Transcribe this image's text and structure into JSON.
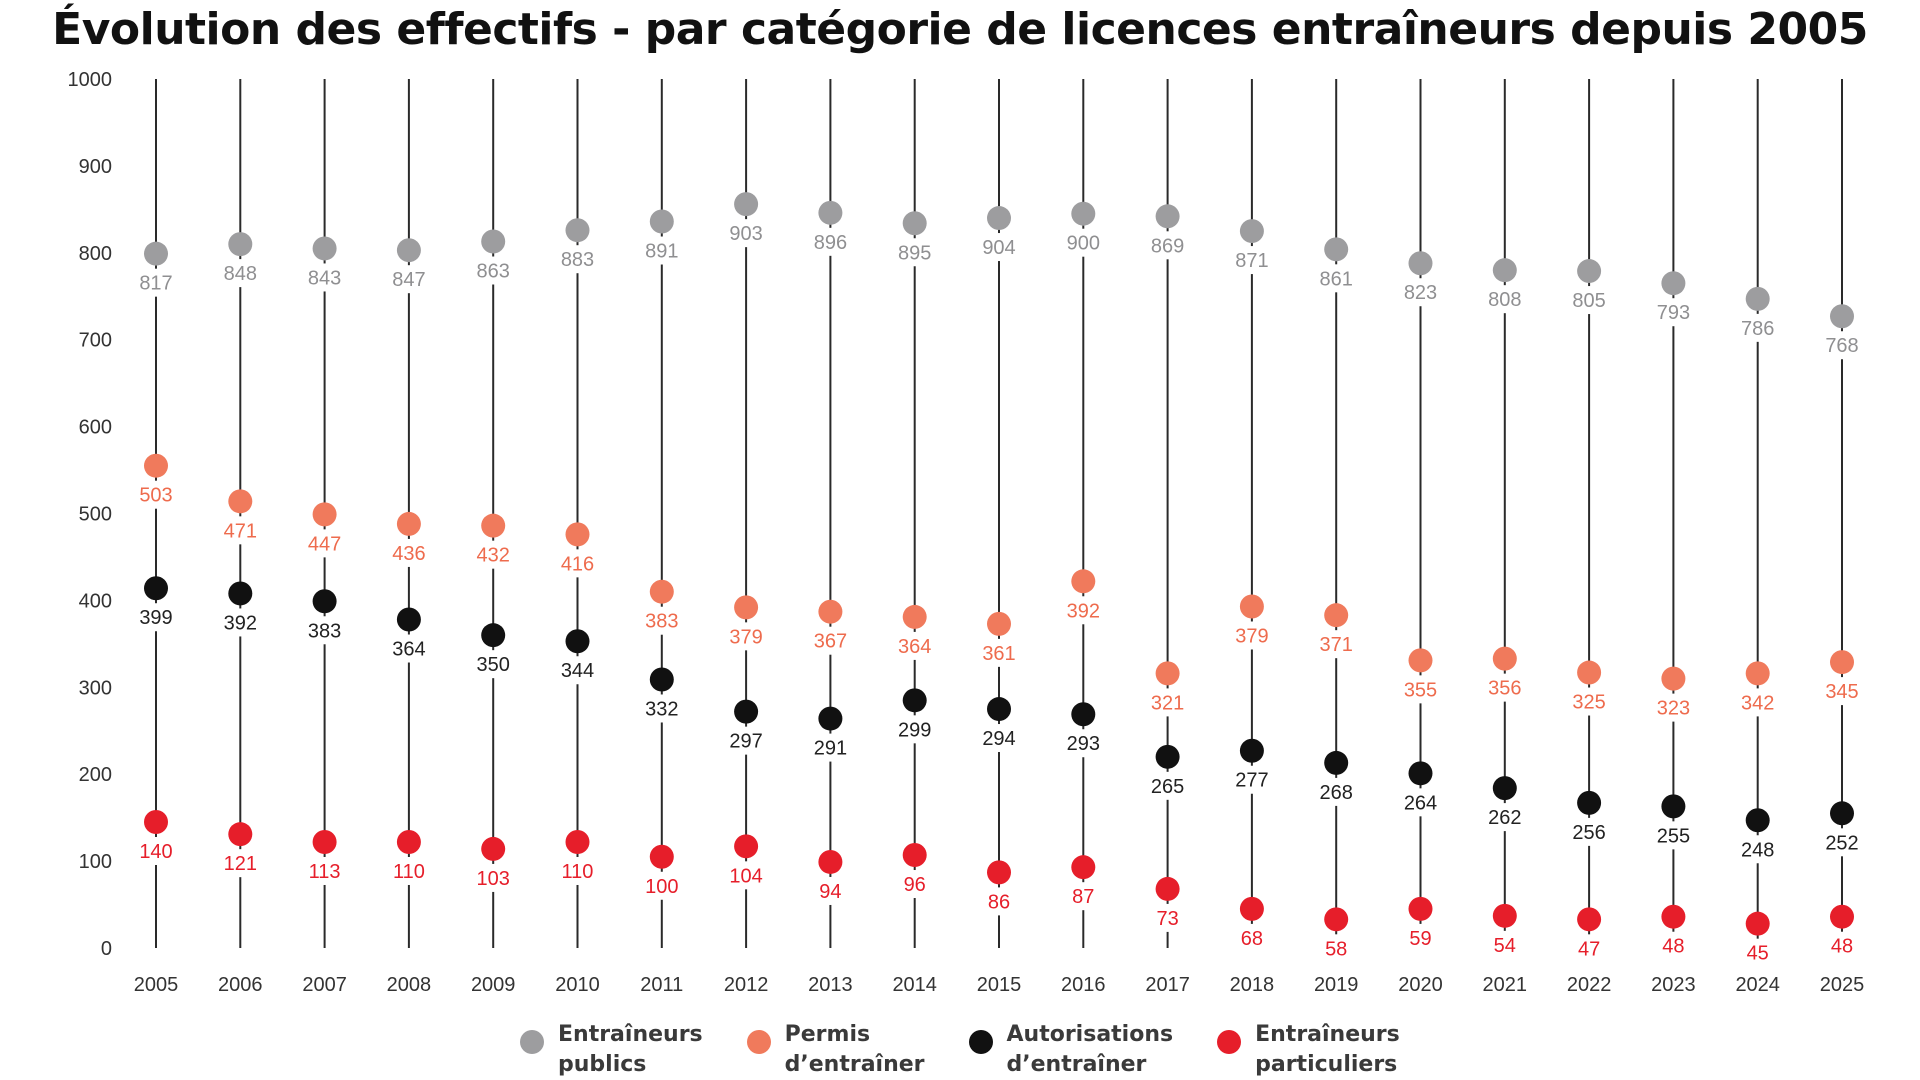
{
  "chart_data": {
    "type": "scatter",
    "title": "Évolution des effectifs - par catégorie de licences entraîneurs depuis 2005",
    "xlabel": "",
    "ylabel": "",
    "ylim": [
      0,
      1000
    ],
    "yticks": [
      0,
      100,
      200,
      300,
      400,
      500,
      600,
      700,
      800,
      900,
      1000
    ],
    "categories": [
      "2005",
      "2006",
      "2007",
      "2008",
      "2009",
      "2010",
      "2011",
      "2012",
      "2013",
      "2014",
      "2015",
      "2016",
      "2017",
      "2018",
      "2019",
      "2020",
      "2021",
      "2022",
      "2023",
      "2024",
      "2025"
    ],
    "grid": false,
    "legend_position": "bottom",
    "series": [
      {
        "name": "Entraîneurs\npublics",
        "color": "#9d9d9f",
        "label_color": "#8f8f91",
        "values": [
          817,
          848,
          843,
          847,
          863,
          883,
          891,
          903,
          896,
          895,
          904,
          900,
          869,
          871,
          861,
          823,
          808,
          805,
          793,
          786,
          768
        ],
        "positions": [
          799,
          810,
          805,
          803,
          813,
          826,
          836,
          856,
          846,
          834,
          840,
          845,
          842,
          825,
          804,
          788,
          780,
          779,
          765,
          747,
          727
        ]
      },
      {
        "name": "Permis\nd’entraîner",
        "color": "#f07a5c",
        "label_color": "#ee6b4d",
        "values": [
          503,
          471,
          447,
          436,
          432,
          416,
          383,
          379,
          367,
          364,
          361,
          392,
          321,
          379,
          371,
          355,
          356,
          325,
          323,
          342,
          345
        ],
        "positions": [
          555,
          514,
          499,
          488,
          486,
          476,
          410,
          392,
          387,
          381,
          373,
          422,
          316,
          393,
          383,
          331,
          333,
          317,
          310,
          316,
          329
        ]
      },
      {
        "name": "Autorisations\nd’entraîner",
        "color": "#111111",
        "label_color": "#222222",
        "values": [
          399,
          392,
          383,
          364,
          350,
          344,
          332,
          297,
          291,
          299,
          294,
          293,
          265,
          277,
          268,
          264,
          262,
          256,
          255,
          248,
          252
        ],
        "positions": [
          414,
          408,
          399,
          378,
          360,
          353,
          309,
          272,
          264,
          285,
          275,
          269,
          220,
          227,
          213,
          201,
          184,
          167,
          163,
          147,
          155
        ]
      },
      {
        "name": "Entraîneurs\nparticuliers",
        "color": "#e61e2a",
        "label_color": "#e61e2a",
        "values": [
          140,
          121,
          113,
          110,
          103,
          110,
          100,
          104,
          94,
          96,
          86,
          87,
          73,
          68,
          58,
          59,
          54,
          47,
          48,
          45,
          48
        ],
        "positions": [
          145,
          131,
          122,
          122,
          114,
          122,
          105,
          117,
          99,
          107,
          87,
          93,
          68,
          45,
          33,
          45,
          37,
          33,
          36,
          28,
          36
        ]
      }
    ]
  }
}
